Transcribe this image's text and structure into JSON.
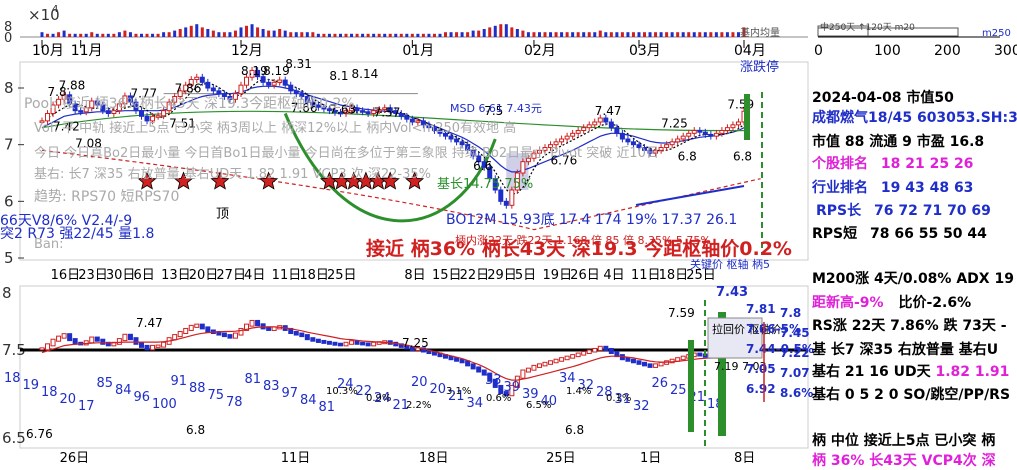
{
  "scale_label": "×10",
  "scale_exp": "4",
  "vol_axis": [
    "8",
    "0"
  ],
  "vol_legend": [
    "基内均量",
    "m250"
  ],
  "hist_ticks": [
    "0",
    "100",
    "200",
    "300"
  ],
  "months": [
    {
      "t": "10月",
      "i": 0
    },
    {
      "t": "11月",
      "i": 7
    },
    {
      "t": "12月",
      "i": 36
    },
    {
      "t": "01月",
      "i": 67
    },
    {
      "t": "02月",
      "i": 89
    },
    {
      "t": "03月",
      "i": 108
    },
    {
      "t": "04月",
      "i": 127
    }
  ],
  "day_labels": [
    {
      "t": "16日",
      "i": 3
    },
    {
      "t": "23日",
      "i": 8
    },
    {
      "t": "30日",
      "i": 13
    },
    {
      "t": "6日",
      "i": 18
    },
    {
      "t": "13日",
      "i": 23
    },
    {
      "t": "20日",
      "i": 28
    },
    {
      "t": "27日",
      "i": 33
    },
    {
      "t": "4日",
      "i": 38
    },
    {
      "t": "11日",
      "i": 43
    },
    {
      "t": "18日",
      "i": 48
    },
    {
      "t": "25日",
      "i": 53
    },
    {
      "t": "8日",
      "i": 67
    },
    {
      "t": "15日",
      "i": 72
    },
    {
      "t": "22日",
      "i": 77
    },
    {
      "t": "29日",
      "i": 82
    },
    {
      "t": "5日",
      "i": 87
    },
    {
      "t": "19日",
      "i": 92
    },
    {
      "t": "26日",
      "i": 97
    },
    {
      "t": "4日",
      "i": 103
    },
    {
      "t": "11日",
      "i": 108
    },
    {
      "t": "18日",
      "i": 113
    },
    {
      "t": "25日",
      "i": 118
    }
  ],
  "main_axis": [
    "8",
    "7",
    "6",
    "5"
  ],
  "low_axis": [
    "8",
    "7.5",
    "6.5"
  ],
  "low_dates": [
    {
      "t": "26日",
      "i": 5
    },
    {
      "t": "11日",
      "i": 45
    },
    {
      "t": "18日",
      "i": 70
    },
    {
      "t": "25日",
      "i": 93
    },
    {
      "t": "1日",
      "i": 110
    },
    {
      "t": "8日",
      "i": 127
    }
  ],
  "price_labels": [
    "7.8",
    "7.88",
    "7.77",
    "7.86",
    "8.19",
    "8.31",
    "8.19",
    "8.1",
    "8.14",
    "7.42",
    "7.51",
    "7.47",
    "7.25",
    "7.59",
    "6.8",
    "6.8",
    "7.08",
    "6.76",
    "6.6",
    "7.5",
    "7.66",
    "7.63",
    "7.57"
  ],
  "status": {
    "p0": "Pool: 接近 柄36%柄长43天 深19.3今距枢轴价0.2%",
    "p1": "Vol: 平 中轨 接近上5点 已小突 柄3周以上 柄深12%以上 柄内Vol<m250有效地 高",
    "p2": "今日 今日真Bo2日最小量 今日首Bo1日最小量 今日尚在多位于第三象限 持续 Bo2日最小 Pivot 突破 近10日",
    "p3": "基右: 长7 深35 右放普量 基右UD天 1.82 1.91 VCP3 次 深22-35%",
    "p4": "趋势: RPS70 短RPS70",
    "p5": "66天V8/6% V2.4/-9",
    "p6": "突2 R73 强22/45 量1.8",
    "p7": "Ban:",
    "top": "顶",
    "bottom_label": "BO12M 15.93底 17.4 174 19% 17.37 26.1",
    "mid_label": "MSD 6.61 7.43元",
    "base_label": "基长14.75 75%",
    "big_line": "接近 柄36% 柄长43天 深19.3 今距枢轴价0.2%",
    "sub_line": "柄内涨22天 跌22天 1.168 倍 85 倍 8.35% 5.75%",
    "pivot_label": "关键价 枢轴 柄5",
    "signal": "涨跌停",
    "mini_legend": "中250天 ↑120天 m20"
  },
  "info": {
    "date_line": "2024-04-08 市值50",
    "stock": "成都燃气18/45 603053.SH:3",
    "mv": "市值 88  流通 9 市盈 16.8",
    "stock_rank_label": "个股排名",
    "stock_rank": "18   21   25   26",
    "ind_rank_label": "行业排名",
    "ind_rank": "19   43   48   63",
    "rps_long_label": "RPS长",
    "rps_long": "76   72   71   70   69",
    "rps_short_label": "RPS短",
    "rps_short": "78   66   55   50   44",
    "m200": "M200涨 4天/0.08%  ADX 19",
    "new_high": "距新高-9%",
    "ratio": "比价-2.6%",
    "rs": "RS涨 22天 7.86% 跌 73天 -",
    "base1": "基 长7 深35 右放普量 基右U",
    "base2_a": "基右 21 16 UD天 ",
    "base2_b": "1.82 1.91",
    "base3": "基右 0 5 2 0 SO/跳空/PP/RS",
    "handle1": "柄 中位 接近上5点 已小突 柄",
    "handle2": "柄 36% 长43天 VCP4次 深"
  },
  "lower": {
    "right_top": "7.43",
    "right_vals": [
      "7.81",
      "7.8",
      "7.66-5%",
      "7.45",
      "7.44-0.5%",
      "7.22",
      "7.05",
      "7.07",
      "6.92",
      "8.6%"
    ],
    "left_nums": [
      "18",
      "19",
      "18",
      "20",
      "17",
      "85",
      "84",
      "96",
      "100",
      "91",
      "88",
      "75",
      "78",
      "81",
      "83",
      "97",
      "84",
      "81",
      "24",
      "22",
      "24",
      "21",
      "20",
      "20",
      "21",
      "34",
      "33",
      "39",
      "39",
      "40",
      "34",
      "32",
      "28",
      "31",
      "32",
      "26",
      "25",
      "21",
      "18"
    ],
    "pct_notes": [
      "10.3%",
      "0.9%",
      "2.2%",
      "3.1%",
      "0.6%",
      "6.5%",
      "1.4%",
      "0.1%"
    ],
    "mid_labels": [
      "7.47",
      "7.25",
      "7.59",
      "6.8",
      "6.8",
      "6.76"
    ],
    "pivot_box": "拉回价 枢轴价",
    "lo_right": "7.19 7.03"
  },
  "chart_data": {
    "type": "candlestick",
    "title": "",
    "x_range": [
      "2023-10-09",
      "2024-04-08"
    ],
    "ylim": [
      5.0,
      8.7
    ],
    "close": [
      7.42,
      7.55,
      7.7,
      7.8,
      7.88,
      7.72,
      7.6,
      7.58,
      7.65,
      7.77,
      7.7,
      7.6,
      7.55,
      7.6,
      7.72,
      7.86,
      7.75,
      7.6,
      7.5,
      7.42,
      7.5,
      7.51,
      7.6,
      7.75,
      7.85,
      7.95,
      8.05,
      8.15,
      8.19,
      8.1,
      8.0,
      7.95,
      7.9,
      7.85,
      7.8,
      7.9,
      8.05,
      8.19,
      8.31,
      8.2,
      8.1,
      8.05,
      8.1,
      8.14,
      8.05,
      7.95,
      7.9,
      7.85,
      7.75,
      7.7,
      7.66,
      7.63,
      7.6,
      7.57,
      7.55,
      7.6,
      7.65,
      7.6,
      7.58,
      7.55,
      7.6,
      7.62,
      7.65,
      7.6,
      7.55,
      7.5,
      7.45,
      7.4,
      7.42,
      7.35,
      7.3,
      7.25,
      7.2,
      7.15,
      7.1,
      7.05,
      7.0,
      6.9,
      6.8,
      6.7,
      6.6,
      6.4,
      6.2,
      6.0,
      5.93,
      6.2,
      6.5,
      6.7,
      6.76,
      6.85,
      6.9,
      6.95,
      7.0,
      7.05,
      7.1,
      7.15,
      7.2,
      7.25,
      7.3,
      7.35,
      7.4,
      7.47,
      7.4,
      7.3,
      7.2,
      7.1,
      7.05,
      7.0,
      6.95,
      6.9,
      6.85,
      6.9,
      6.95,
      7.0,
      7.05,
      7.1,
      7.15,
      7.2,
      7.25,
      7.22,
      7.18,
      7.15,
      7.2,
      7.25,
      7.3,
      7.35,
      7.4,
      7.59
    ],
    "ma_blue": [
      7.3,
      7.35,
      7.4,
      7.45,
      7.5,
      7.52,
      7.54,
      7.55,
      7.56,
      7.57,
      7.58,
      7.58,
      7.58,
      7.58,
      7.59,
      7.6,
      7.6,
      7.6,
      7.6,
      7.6,
      7.6,
      7.6,
      7.61,
      7.63,
      7.66,
      7.7,
      7.74,
      7.78,
      7.82,
      7.85,
      7.87,
      7.88,
      7.89,
      7.9,
      7.9,
      7.91,
      7.93,
      7.96,
      8.0,
      8.02,
      8.03,
      8.03,
      8.03,
      8.02,
      8.0,
      7.98,
      7.95,
      7.92,
      7.88,
      7.85,
      7.82,
      7.79,
      7.76,
      7.73,
      7.7,
      7.68,
      7.67,
      7.65,
      7.63,
      7.62,
      7.61,
      7.6,
      7.59,
      7.58,
      7.56,
      7.54,
      7.51,
      7.48,
      7.45,
      7.41,
      7.37,
      7.33,
      7.29,
      7.25,
      7.21,
      7.17,
      7.13,
      7.08,
      7.02,
      6.96,
      6.89,
      6.81,
      6.72,
      6.63,
      6.56,
      6.52,
      6.52,
      6.55,
      6.58,
      6.62,
      6.66,
      6.7,
      6.74,
      6.78,
      6.82,
      6.86,
      6.9,
      6.95,
      7.0,
      7.05,
      7.1,
      7.15,
      7.18,
      7.2,
      7.2,
      7.19,
      7.17,
      7.15,
      7.12,
      7.09,
      7.06,
      7.04,
      7.03,
      7.03,
      7.04,
      7.05,
      7.07,
      7.09,
      7.11,
      7.13,
      7.14,
      7.15,
      7.16,
      7.18,
      7.2,
      7.22,
      7.25,
      7.3
    ],
    "volume_x1e4": [
      3,
      2,
      2,
      3,
      4,
      2,
      2,
      2,
      2,
      3,
      2,
      2,
      2,
      2,
      3,
      4,
      3,
      2,
      2,
      2,
      2,
      2,
      3,
      3,
      4,
      5,
      6,
      7,
      8,
      6,
      5,
      4,
      3,
      3,
      3,
      4,
      6,
      7,
      8,
      6,
      5,
      4,
      4,
      5,
      4,
      3,
      3,
      3,
      3,
      3,
      2,
      2,
      2,
      2,
      2,
      2,
      2,
      2,
      2,
      2,
      2,
      2,
      2,
      2,
      2,
      2,
      2,
      2,
      2,
      2,
      2,
      2,
      2,
      3,
      3,
      3,
      3,
      3,
      4,
      4,
      5,
      6,
      7,
      8,
      8,
      6,
      5,
      4,
      3,
      3,
      3,
      3,
      3,
      3,
      3,
      3,
      3,
      3,
      3,
      3,
      3,
      4,
      3,
      3,
      3,
      3,
      3,
      3,
      3,
      3,
      3,
      3,
      3,
      3,
      3,
      3,
      3,
      3,
      3,
      3,
      3,
      3,
      3,
      3,
      3,
      3,
      3,
      6
    ]
  }
}
